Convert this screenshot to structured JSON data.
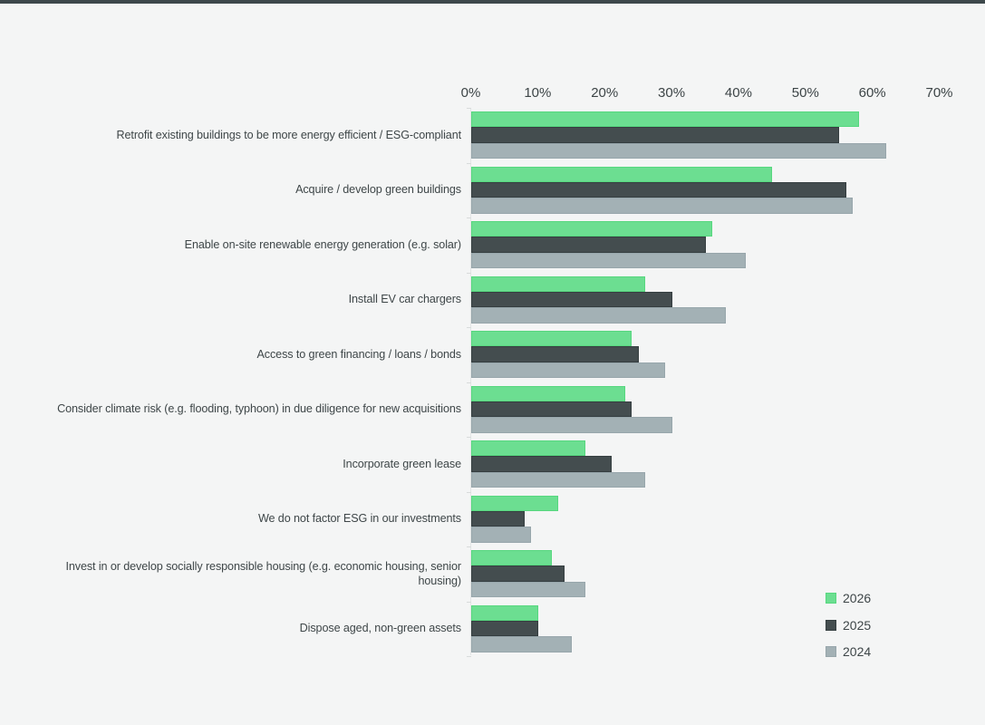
{
  "page": {
    "background_color": "#F4F5F5",
    "top_strip_color": "#3D484B",
    "text_color": "#3E4648"
  },
  "chart_data": {
    "type": "bar",
    "orientation": "horizontal",
    "title": "",
    "xlabel": "",
    "ylabel": "",
    "xlim": [
      0,
      70
    ],
    "x_tick_labels": [
      "0%",
      "10%",
      "20%",
      "30%",
      "40%",
      "50%",
      "60%",
      "70%"
    ],
    "grid": false,
    "legend_position": "bottom-right",
    "categories": [
      "Retrofit existing buildings to be more energy efficient / ESG-compliant",
      "Acquire / develop green buildings",
      "Enable on-site renewable energy generation (e.g. solar)",
      "Install EV car chargers",
      "Access to green financing / loans / bonds",
      "Consider climate risk (e.g. flooding, typhoon) in due diligence for new acquisitions",
      "Incorporate green lease",
      "We do not factor ESG in our investments",
      "Invest in or develop socially responsible housing (e.g. economic housing, senior housing)",
      "Dispose aged, non-green assets"
    ],
    "series": [
      {
        "name": "2026",
        "color": "#6CDE91",
        "border_color": "#57D77F",
        "values": [
          58,
          45,
          36,
          26,
          24,
          23,
          17,
          13,
          12,
          10
        ]
      },
      {
        "name": "2025",
        "color": "#444D4F",
        "border_color": "#363F41",
        "values": [
          55,
          56,
          35,
          30,
          25,
          24,
          21,
          8,
          14,
          10
        ]
      },
      {
        "name": "2024",
        "color": "#A3B1B5",
        "border_color": "#97A6AB",
        "values": [
          62,
          57,
          41,
          38,
          29,
          30,
          26,
          9,
          17,
          15
        ]
      }
    ]
  }
}
